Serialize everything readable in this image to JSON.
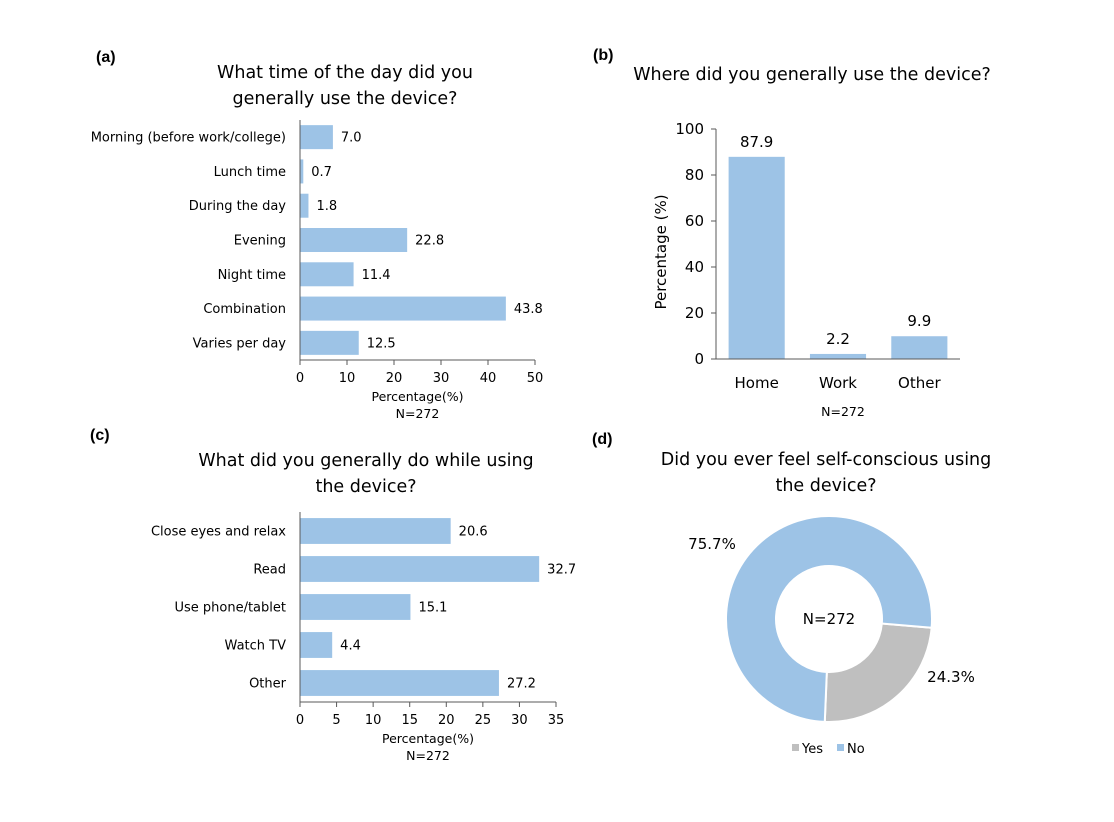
{
  "colors": {
    "bar": "#9DC3E6",
    "yes": "#BFBFBF",
    "no": "#9DC3E6",
    "axis": "#595959"
  },
  "panels": {
    "a": {
      "letter": "(a)",
      "title_lines": [
        "What time of the day did you",
        "generally use the device?"
      ]
    },
    "b": {
      "letter": "(b)",
      "title_lines": [
        "Where did you generally use the device?"
      ]
    },
    "c": {
      "letter": "(c)",
      "title_lines": [
        "What did you generally do while using",
        "the device?"
      ]
    },
    "d": {
      "letter": "(d)",
      "title_lines": [
        "Did you ever feel self-conscious using",
        "the device?"
      ]
    }
  },
  "chart_data": [
    {
      "id": "a",
      "type": "bar",
      "orientation": "horizontal",
      "categories": [
        "Morning (before work/college)",
        "Lunch time",
        "During the day",
        "Evening",
        "Night time",
        "Combination",
        "Varies per day"
      ],
      "values": [
        7.0,
        0.7,
        1.8,
        22.8,
        11.4,
        43.8,
        12.5
      ],
      "value_labels": [
        "7.0",
        "0.7",
        "1.8",
        "22.8",
        "11.4",
        "43.8",
        "12.5"
      ],
      "xlabel": "Percentage(%)",
      "note": "N=272",
      "xlim": [
        0,
        50
      ],
      "xticks": [
        0,
        10,
        20,
        30,
        40,
        50
      ]
    },
    {
      "id": "b",
      "type": "bar",
      "orientation": "vertical",
      "categories": [
        "Home",
        "Work",
        "Other"
      ],
      "values": [
        87.9,
        2.2,
        9.9
      ],
      "value_labels": [
        "87.9",
        "2.2",
        "9.9"
      ],
      "ylabel": "Percentage (%)",
      "note": "N=272",
      "ylim": [
        0,
        100
      ],
      "yticks": [
        0,
        20,
        40,
        60,
        80,
        100
      ]
    },
    {
      "id": "c",
      "type": "bar",
      "orientation": "horizontal",
      "categories": [
        "Close eyes and relax",
        "Read",
        "Use phone/tablet",
        "Watch TV",
        "Other"
      ],
      "values": [
        20.6,
        32.7,
        15.1,
        4.4,
        27.2
      ],
      "value_labels": [
        "20.6",
        "32.7",
        "15.1",
        "4.4",
        "27.2"
      ],
      "xlabel": "Percentage(%)",
      "note": "N=272",
      "xlim": [
        0,
        35
      ],
      "xticks": [
        0,
        5,
        10,
        15,
        20,
        25,
        30,
        35
      ]
    },
    {
      "id": "d",
      "type": "pie",
      "donut": true,
      "center_label": "N=272",
      "slices": [
        {
          "name": "Yes",
          "value": 24.3,
          "label": "24.3%"
        },
        {
          "name": "No",
          "value": 75.7,
          "label": "75.7%"
        }
      ],
      "legend": [
        "Yes",
        "No"
      ],
      "legend_position": "bottom"
    }
  ]
}
